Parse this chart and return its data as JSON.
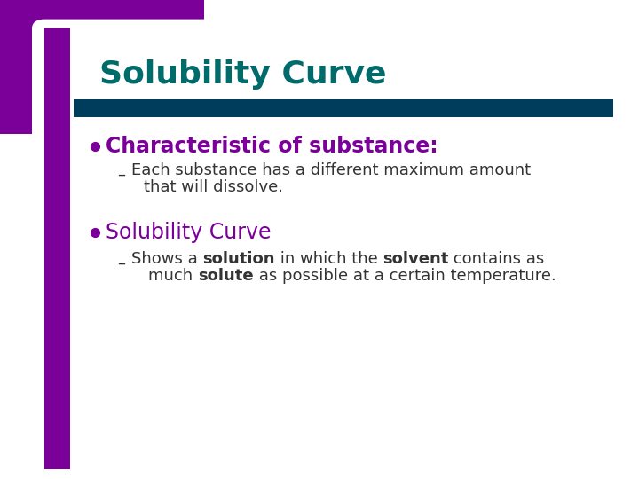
{
  "title": "Solubility Curve",
  "title_color": "#006B6B",
  "title_fontsize": 26,
  "purple_color": "#7B0099",
  "teal_color": "#003D5C",
  "bg_color": "#FFFFFF",
  "bullet1_text": "Characteristic of substance:",
  "bullet1_fontsize": 17,
  "sub1_line1": "Each substance has a different maximum amount",
  "sub1_line2": "that will dissolve.",
  "sub_fontsize": 13,
  "bullet2_text": "Solubility Curve",
  "bullet2_fontsize": 17,
  "sub2_plain1": "Shows a ",
  "sub2_bold1": "solution",
  "sub2_plain2": " in which the ",
  "sub2_bold2": "solvent",
  "sub2_plain3": " contains as",
  "sub2_line2_plain1": "much ",
  "sub2_line2_bold1": "solute",
  "sub2_line2_plain2": " as possible at a certain temperature.",
  "text_color": "#333333"
}
